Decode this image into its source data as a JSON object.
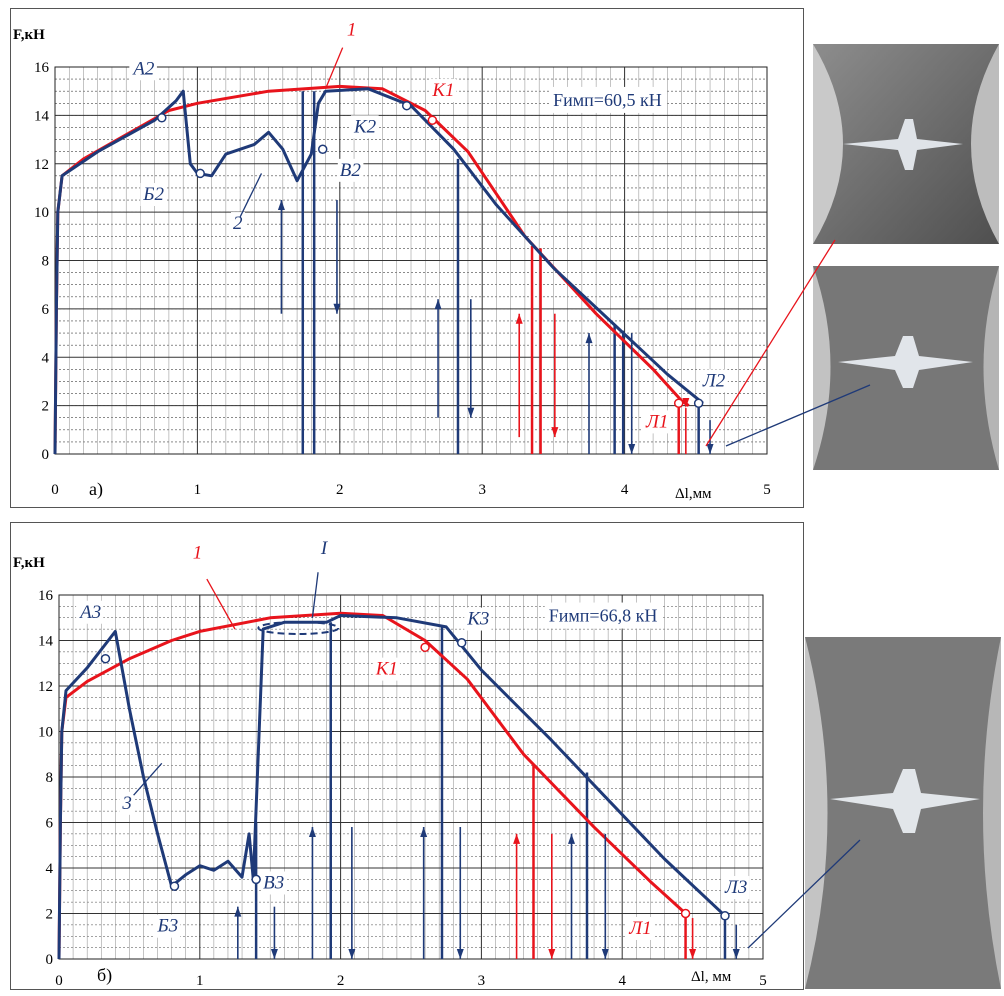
{
  "charts_count": 2,
  "chart_data": [
    {
      "id": "a",
      "type": "line",
      "panel_label": "а)",
      "ylabel": "F,кН",
      "xlabel": "Δl,мм",
      "xlim": [
        0,
        5
      ],
      "ylim": [
        0,
        16
      ],
      "xticks": [
        "0",
        "1",
        "2",
        "3",
        "4",
        "5"
      ],
      "yticks": [
        "0",
        "2",
        "4",
        "6",
        "8",
        "10",
        "12",
        "14",
        "16"
      ],
      "grid": true,
      "annotation_box": "Fимп=60,5 кН",
      "series": [
        {
          "name": "1",
          "color": "#e8141c",
          "points": [
            [
              0,
              0
            ],
            [
              0.01,
              6
            ],
            [
              0.02,
              10
            ],
            [
              0.05,
              11.5
            ],
            [
              0.2,
              12.2
            ],
            [
              0.5,
              13.2
            ],
            [
              0.8,
              14.2
            ],
            [
              1,
              14.5
            ],
            [
              1.5,
              15
            ],
            [
              2,
              15.2
            ],
            [
              2.3,
              15.1
            ],
            [
              2.6,
              14.2
            ],
            [
              2.9,
              12.5
            ],
            [
              3.3,
              9
            ],
            [
              3.8,
              5.8
            ],
            [
              4.2,
              3.5
            ],
            [
              4.4,
              2.2
            ],
            [
              4.45,
              2
            ]
          ],
          "point_labels": [
            "К1",
            "Л1"
          ]
        },
        {
          "name": "2",
          "color": "#1f3a78",
          "points": [
            [
              0,
              0
            ],
            [
              0.01,
              6
            ],
            [
              0.02,
              10
            ],
            [
              0.05,
              11.5
            ],
            [
              0.3,
              12.5
            ],
            [
              0.7,
              13.8
            ],
            [
              0.85,
              14.6
            ],
            [
              0.9,
              15
            ],
            [
              0.95,
              12
            ],
            [
              1,
              11.6
            ],
            [
              1.1,
              11.5
            ],
            [
              1.2,
              12.4
            ],
            [
              1.4,
              12.8
            ],
            [
              1.5,
              13.3
            ],
            [
              1.6,
              12.6
            ],
            [
              1.7,
              11.3
            ],
            [
              1.8,
              12.4
            ],
            [
              1.85,
              14.5
            ],
            [
              1.9,
              15
            ],
            [
              2.2,
              15.1
            ],
            [
              2.5,
              14.4
            ],
            [
              2.8,
              12.6
            ],
            [
              3.1,
              10.3
            ],
            [
              3.5,
              7.7
            ],
            [
              3.9,
              5.5
            ],
            [
              4.3,
              3.3
            ],
            [
              4.55,
              2.1
            ]
          ],
          "point_labels": [
            "А2",
            "Б2",
            "В2",
            "К2",
            "Л2"
          ]
        }
      ],
      "labels": [
        {
          "text": "1",
          "x": 2.05,
          "y": 17.3,
          "color": "#e8141c"
        },
        {
          "text": "2",
          "x": 1.25,
          "y": 9.3,
          "color": "#1f3a78"
        },
        {
          "text": "А2",
          "x": 0.55,
          "y": 15.7,
          "color": "#1f3a78"
        },
        {
          "text": "Б2",
          "x": 0.62,
          "y": 10.5,
          "color": "#1f3a78"
        },
        {
          "text": "В2",
          "x": 2,
          "y": 11.5,
          "color": "#1f3a78"
        },
        {
          "text": "К2",
          "x": 2.1,
          "y": 13.3,
          "color": "#1f3a78"
        },
        {
          "text": "К1",
          "x": 2.65,
          "y": 14.8,
          "color": "#e8141c"
        },
        {
          "text": "Л1",
          "x": 4.15,
          "y": 1.1,
          "color": "#e8141c"
        },
        {
          "text": "Л2",
          "x": 4.55,
          "y": 2.8,
          "color": "#1f3a78"
        }
      ],
      "markers": [
        {
          "x": 0.75,
          "y": 13.9,
          "color": "#1f3a78"
        },
        {
          "x": 1.02,
          "y": 11.6,
          "color": "#1f3a78"
        },
        {
          "x": 1.88,
          "y": 12.6,
          "color": "#1f3a78"
        },
        {
          "x": 2.47,
          "y": 14.4,
          "color": "#1f3a78"
        },
        {
          "x": 2.65,
          "y": 13.8,
          "color": "#e8141c"
        },
        {
          "x": 4.38,
          "y": 2.1,
          "color": "#e8141c"
        },
        {
          "x": 4.52,
          "y": 2.1,
          "color": "#1f3a78"
        }
      ],
      "verticals": [
        {
          "x": 1.74,
          "y": 15,
          "color": "#1f3a78"
        },
        {
          "x": 1.82,
          "y": 15,
          "color": "#1f3a78"
        },
        {
          "x": 2.83,
          "y": 12.2,
          "color": "#1f3a78"
        },
        {
          "x": 3.35,
          "y": 8.6,
          "color": "#e8141c"
        },
        {
          "x": 3.41,
          "y": 8.5,
          "color": "#e8141c"
        },
        {
          "x": 3.93,
          "y": 5.3,
          "color": "#1f3a78"
        },
        {
          "x": 3.99,
          "y": 5.1,
          "color": "#1f3a78"
        },
        {
          "x": 4.38,
          "y": 2,
          "color": "#e8141c"
        },
        {
          "x": 4.52,
          "y": 2,
          "color": "#1f3a78"
        }
      ],
      "arrows": [
        {
          "x": 1.59,
          "y0": 5.8,
          "y1": 10.5,
          "dir": "up",
          "color": "#1f3a78"
        },
        {
          "x": 1.98,
          "y0": 10.5,
          "y1": 5.8,
          "dir": "down",
          "color": "#1f3a78"
        },
        {
          "x": 2.69,
          "y0": 1.5,
          "y1": 6.4,
          "dir": "up",
          "color": "#1f3a78"
        },
        {
          "x": 2.92,
          "y0": 6.4,
          "y1": 1.5,
          "dir": "down",
          "color": "#1f3a78"
        },
        {
          "x": 3.26,
          "y0": 0.7,
          "y1": 5.8,
          "dir": "up",
          "color": "#e8141c"
        },
        {
          "x": 3.51,
          "y0": 5.8,
          "y1": 0.7,
          "dir": "down",
          "color": "#e8141c"
        },
        {
          "x": 3.75,
          "y0": 0,
          "y1": 5,
          "dir": "up",
          "color": "#1f3a78"
        },
        {
          "x": 4.05,
          "y0": 5,
          "y1": 0,
          "dir": "down",
          "color": "#1f3a78"
        },
        {
          "x": 4.43,
          "y0": 0,
          "y1": 1.9,
          "dir": "down",
          "color": "#e8141c"
        },
        {
          "x": 4.6,
          "y0": 1.4,
          "y1": 0,
          "dir": "down",
          "color": "#1f3a78"
        }
      ]
    },
    {
      "id": "b",
      "type": "line",
      "panel_label": "б)",
      "ylabel": "F,кН",
      "xlabel": "Δl, мм",
      "xlim": [
        0,
        5
      ],
      "ylim": [
        0,
        16
      ],
      "xticks": [
        "0",
        "1",
        "2",
        "3",
        "4",
        "5"
      ],
      "yticks": [
        "0",
        "2",
        "4",
        "6",
        "8",
        "10",
        "12",
        "14",
        "16"
      ],
      "grid": true,
      "annotation_box": "Fимп=66,8 кН",
      "series": [
        {
          "name": "1",
          "color": "#e8141c",
          "points": [
            [
              0,
              0
            ],
            [
              0.01,
              6
            ],
            [
              0.02,
              10
            ],
            [
              0.05,
              11.5
            ],
            [
              0.2,
              12.2
            ],
            [
              0.5,
              13.2
            ],
            [
              0.8,
              14
            ],
            [
              1,
              14.4
            ],
            [
              1.5,
              15
            ],
            [
              2,
              15.2
            ],
            [
              2.3,
              15.1
            ],
            [
              2.6,
              14
            ],
            [
              2.9,
              12.3
            ],
            [
              3.3,
              9
            ],
            [
              3.8,
              5.8
            ],
            [
              4.2,
              3.4
            ],
            [
              4.45,
              2
            ]
          ],
          "point_labels": [
            "К1",
            "Л1"
          ]
        },
        {
          "name": "3",
          "color": "#1f3a78",
          "points": [
            [
              0,
              0
            ],
            [
              0.01,
              6
            ],
            [
              0.02,
              10
            ],
            [
              0.05,
              11.8
            ],
            [
              0.2,
              12.8
            ],
            [
              0.35,
              14
            ],
            [
              0.4,
              14.4
            ],
            [
              0.5,
              11
            ],
            [
              0.6,
              8
            ],
            [
              0.7,
              5.5
            ],
            [
              0.8,
              3.2
            ],
            [
              0.9,
              3.7
            ],
            [
              1,
              4.1
            ],
            [
              1.1,
              3.9
            ],
            [
              1.2,
              4.3
            ],
            [
              1.3,
              3.6
            ],
            [
              1.35,
              5.5
            ],
            [
              1.38,
              3.5
            ],
            [
              1.45,
              14.5
            ],
            [
              1.6,
              14.8
            ],
            [
              1.9,
              14.8
            ],
            [
              2,
              15.1
            ],
            [
              2.4,
              15
            ],
            [
              2.75,
              14.6
            ],
            [
              3,
              12.7
            ],
            [
              3.5,
              9.6
            ],
            [
              3.9,
              7
            ],
            [
              4.3,
              4.4
            ],
            [
              4.73,
              1.9
            ]
          ],
          "point_labels": [
            "А3",
            "Б3",
            "В3",
            "К3",
            "Л3"
          ]
        }
      ],
      "labels": [
        {
          "text": "1",
          "x": 0.95,
          "y": 17.6,
          "color": "#e8141c"
        },
        {
          "text": "I",
          "x": 1.86,
          "y": 17.8,
          "color": "#1f3a78"
        },
        {
          "text": "3",
          "x": 0.45,
          "y": 6.6,
          "color": "#1f3a78"
        },
        {
          "text": "А3",
          "x": 0.15,
          "y": 15,
          "color": "#1f3a78"
        },
        {
          "text": "Б3",
          "x": 0.7,
          "y": 1.2,
          "color": "#1f3a78"
        },
        {
          "text": "В3",
          "x": 1.45,
          "y": 3.1,
          "color": "#1f3a78"
        },
        {
          "text": "К3",
          "x": 2.9,
          "y": 14.7,
          "color": "#1f3a78"
        },
        {
          "text": "К1",
          "x": 2.25,
          "y": 12.5,
          "color": "#e8141c"
        },
        {
          "text": "Л1",
          "x": 4.05,
          "y": 1.1,
          "color": "#e8141c"
        },
        {
          "text": "Л3",
          "x": 4.73,
          "y": 2.9,
          "color": "#1f3a78"
        }
      ],
      "markers": [
        {
          "x": 0.33,
          "y": 13.2,
          "color": "#1f3a78"
        },
        {
          "x": 0.82,
          "y": 3.2,
          "color": "#1f3a78"
        },
        {
          "x": 1.4,
          "y": 3.5,
          "color": "#1f3a78"
        },
        {
          "x": 2.6,
          "y": 13.7,
          "color": "#e8141c"
        },
        {
          "x": 2.86,
          "y": 13.9,
          "color": "#1f3a78"
        },
        {
          "x": 4.45,
          "y": 2,
          "color": "#e8141c"
        },
        {
          "x": 4.73,
          "y": 1.9,
          "color": "#1f3a78"
        }
      ],
      "verticals": [
        {
          "x": 1.4,
          "y": 6,
          "color": "#1f3a78"
        },
        {
          "x": 1.93,
          "y": 14.8,
          "color": "#1f3a78"
        },
        {
          "x": 2.72,
          "y": 14.6,
          "color": "#1f3a78"
        },
        {
          "x": 3.37,
          "y": 8.5,
          "color": "#e8141c"
        },
        {
          "x": 3.75,
          "y": 8.2,
          "color": "#1f3a78"
        },
        {
          "x": 4.45,
          "y": 2,
          "color": "#e8141c"
        },
        {
          "x": 4.73,
          "y": 1.9,
          "color": "#1f3a78"
        }
      ],
      "arrows": [
        {
          "x": 1.27,
          "y0": 0,
          "y1": 2.3,
          "dir": "up",
          "color": "#1f3a78"
        },
        {
          "x": 1.53,
          "y0": 2.3,
          "y1": 0,
          "dir": "down",
          "color": "#1f3a78"
        },
        {
          "x": 1.8,
          "y0": 0,
          "y1": 5.8,
          "dir": "up",
          "color": "#1f3a78"
        },
        {
          "x": 2.08,
          "y0": 5.8,
          "y1": 0,
          "dir": "down",
          "color": "#1f3a78"
        },
        {
          "x": 2.59,
          "y0": 0,
          "y1": 5.8,
          "dir": "up",
          "color": "#1f3a78"
        },
        {
          "x": 2.85,
          "y0": 5.8,
          "y1": 0,
          "dir": "down",
          "color": "#1f3a78"
        },
        {
          "x": 3.25,
          "y0": 0,
          "y1": 5.5,
          "dir": "up",
          "color": "#e8141c"
        },
        {
          "x": 3.5,
          "y0": 5.5,
          "y1": 0,
          "dir": "down",
          "color": "#e8141c"
        },
        {
          "x": 3.64,
          "y0": 0,
          "y1": 5.5,
          "dir": "up",
          "color": "#1f3a78"
        },
        {
          "x": 3.88,
          "y0": 5.5,
          "y1": 0,
          "dir": "down",
          "color": "#1f3a78"
        },
        {
          "x": 4.5,
          "y0": 1.8,
          "y1": 0,
          "dir": "down",
          "color": "#e8141c"
        },
        {
          "x": 4.81,
          "y0": 1.5,
          "y1": 0,
          "dir": "down",
          "color": "#1f3a78"
        }
      ]
    }
  ]
}
